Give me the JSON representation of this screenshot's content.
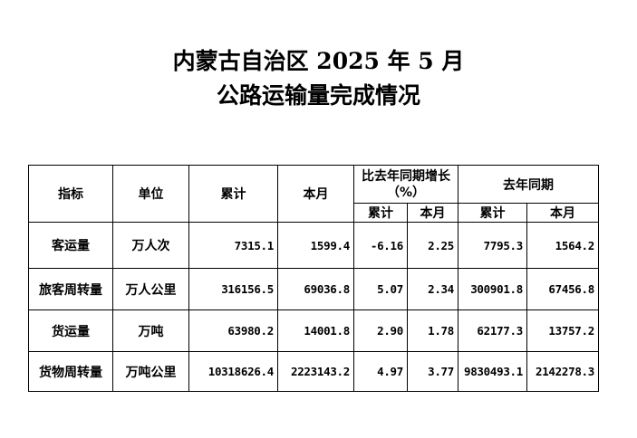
{
  "title": {
    "line1": "内蒙古自治区 2025 年 5 月",
    "line2": "公路运输量完成情况"
  },
  "table": {
    "headers": {
      "indicator": "指标",
      "unit": "单位",
      "cumulative": "累计",
      "month": "本月",
      "growth": "比去年同期增长（%）",
      "last_year": "去年同期",
      "sub_cumulative": "累计",
      "sub_month": "本月"
    },
    "rows": [
      {
        "indicator": "客运量",
        "unit": "万人次",
        "cumulative": "7315.1",
        "month": "1599.4",
        "growth_cumulative": "-6.16",
        "growth_month": "2.25",
        "ly_cumulative": "7795.3",
        "ly_month": "1564.2"
      },
      {
        "indicator": "旅客周转量",
        "unit": "万人公里",
        "cumulative": "316156.5",
        "month": "69036.8",
        "growth_cumulative": "5.07",
        "growth_month": "2.34",
        "ly_cumulative": "300901.8",
        "ly_month": "67456.8"
      },
      {
        "indicator": "货运量",
        "unit": "万吨",
        "cumulative": "63980.2",
        "month": "14001.8",
        "growth_cumulative": "2.90",
        "growth_month": "1.78",
        "ly_cumulative": "62177.3",
        "ly_month": "13757.2"
      },
      {
        "indicator": "货物周转量",
        "unit": "万吨公里",
        "cumulative": "10318626.4",
        "month": "2223143.2",
        "growth_cumulative": "4.97",
        "growth_month": "3.77",
        "ly_cumulative": "9830493.1",
        "ly_month": "2142278.3"
      }
    ]
  }
}
